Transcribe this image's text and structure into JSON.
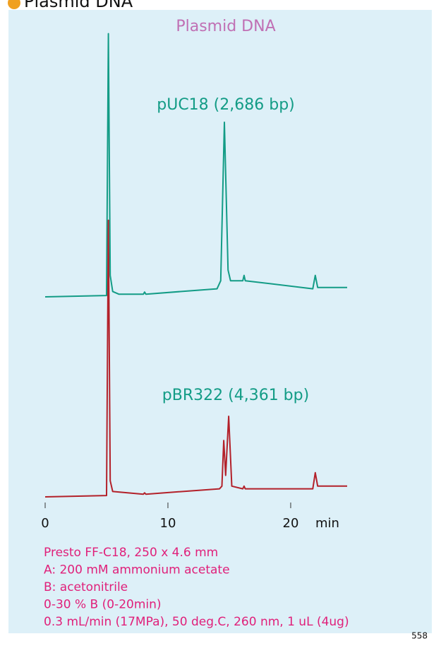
{
  "header": "Plasmid DNA",
  "chart_data": [
    {
      "type": "line",
      "title": "Plasmid DNA",
      "subtitle": "pUC18 (2,686 bp)",
      "color": "#139c86",
      "x": [
        0,
        5.0,
        5.15,
        5.3,
        5.5,
        6,
        8.0,
        8.1,
        8.2,
        14.0,
        14.3,
        14.6,
        14.9,
        15.1,
        16.1,
        16.2,
        16.3,
        21.8,
        22.0,
        22.2,
        24.6
      ],
      "values": [
        0,
        0.5,
        98,
        8,
        2,
        1,
        1,
        1.8,
        1,
        3,
        6,
        65,
        10,
        6,
        6,
        8,
        6,
        3,
        8,
        3.5,
        3.5
      ],
      "xlim": [
        0,
        24.6
      ],
      "ylim": [
        0,
        100
      ]
    },
    {
      "type": "line",
      "subtitle": "pBR322 (4,361 bp)",
      "color": "#b3212a",
      "xlabel": "min",
      "x": [
        0,
        5.0,
        5.15,
        5.3,
        5.5,
        8.0,
        8.1,
        8.2,
        14.2,
        14.4,
        14.55,
        14.7,
        14.95,
        15.2,
        16.1,
        16.2,
        16.3,
        21.8,
        22.0,
        22.2,
        24.6
      ],
      "values": [
        0,
        0.5,
        103,
        6,
        2,
        1,
        1.5,
        1,
        3,
        4,
        21,
        8,
        30,
        4,
        3,
        4,
        3,
        3,
        9,
        4,
        4
      ],
      "xlim": [
        0,
        24.6
      ],
      "ylim": [
        0,
        105
      ],
      "xticks": [
        0,
        10,
        20
      ]
    }
  ],
  "notes": [
    "Presto FF-C18, 250 x 4.6 mm",
    "A: 200 mM ammonium acetate",
    "B: acetonitrile",
    "0-30 % B (0-20min)",
    "0.3 mL/min (17MPa), 50 deg.C, 260 nm, 1 uL (4ug)"
  ],
  "page_number": 558
}
